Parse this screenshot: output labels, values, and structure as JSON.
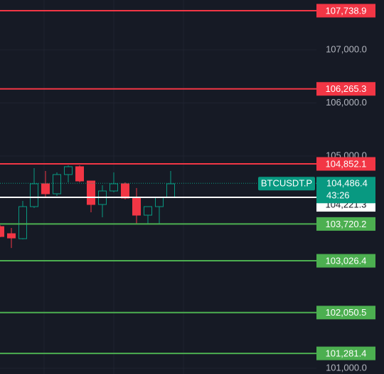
{
  "chart_data": {
    "type": "candlestick",
    "categories": [
      null,
      null,
      null,
      null,
      null,
      null,
      null,
      null,
      null,
      null,
      null,
      null,
      null,
      null,
      null,
      null
    ],
    "open": [
      103671,
      103537,
      103443,
      104047,
      104477,
      104289,
      104651,
      104799,
      104530,
      104087,
      104342,
      104477,
      104208,
      103886,
      104047,
      104221
    ],
    "high": [
      103700,
      103644,
      104154,
      104772,
      104718,
      104691,
      104825,
      104825,
      104530,
      104450,
      104691,
      104503,
      104396,
      104047,
      104235,
      104718
    ],
    "low": [
      103470,
      103268,
      103430,
      104020,
      104235,
      104248,
      104503,
      104503,
      103940,
      103846,
      104315,
      104181,
      103725,
      103725,
      103725,
      104208
    ],
    "close": [
      103483,
      103456,
      104047,
      104477,
      104289,
      104651,
      104799,
      104530,
      104087,
      104342,
      104477,
      104208,
      103886,
      104047,
      104221,
      104477
    ],
    "up_color": "#089981",
    "down_color": "#f23645",
    "ylim": [
      100893,
      107940
    ],
    "yticks": [
      {
        "value": 101000,
        "label": "101,000.0"
      },
      {
        "value": 105000,
        "label": "105,000.0"
      },
      {
        "value": 106000,
        "label": "106,000.0"
      },
      {
        "value": 107000,
        "label": "107,000.0"
      }
    ],
    "grid": true,
    "levels": [
      {
        "value": 107738.9,
        "label": "107,738.9",
        "color": "#f23645"
      },
      {
        "value": 106265.3,
        "label": "106,265.3",
        "color": "#f23645"
      },
      {
        "value": 104852.1,
        "label": "104,852.1",
        "color": "#f23645"
      },
      {
        "value": 103720.2,
        "label": "103,720.2",
        "color": "#4caf50"
      },
      {
        "value": 103026.4,
        "label": "103,026.4",
        "color": "#4caf50"
      },
      {
        "value": 102050.5,
        "label": "102,050.5",
        "color": "#4caf50"
      },
      {
        "value": 101281.4,
        "label": "101,281.4",
        "color": "#4caf50"
      }
    ],
    "last_price": {
      "symbol": "BTCUSDT.P",
      "value": 104486.4,
      "label": "104,486.4",
      "countdown": "43:26",
      "color": "#089981"
    },
    "marker": {
      "value": 104221.3,
      "label": "104,221.3",
      "color": "#ffffff"
    }
  }
}
